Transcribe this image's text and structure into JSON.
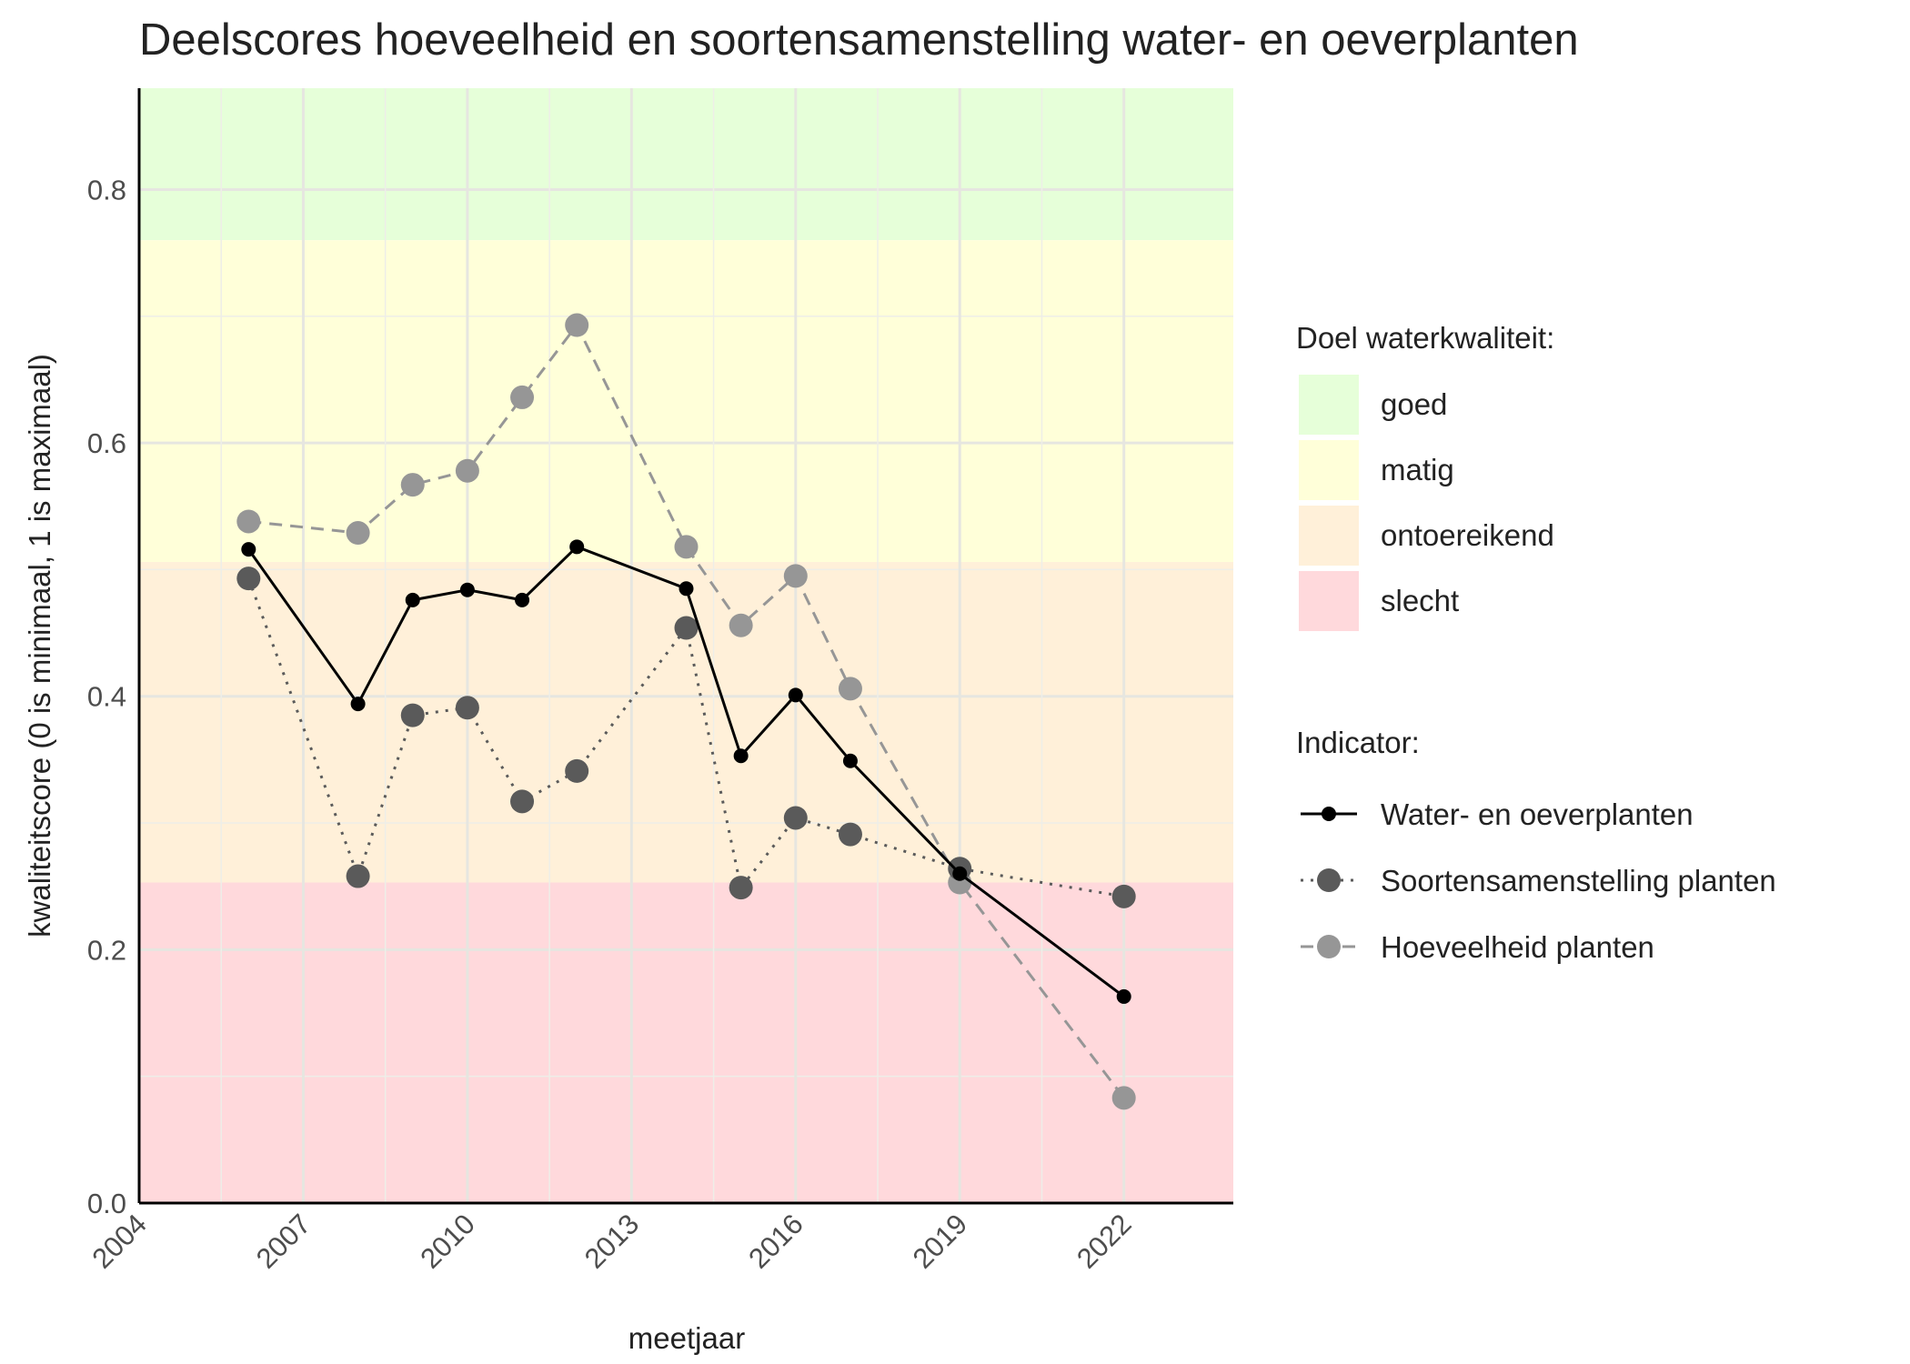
{
  "chart_data": {
    "type": "line",
    "title": "Deelscores hoeveelheid en soortensamenstelling water- en oeverplanten",
    "x_label": "meetjaar",
    "y_label": "kwaliteitscore (0 is minimaal, 1 is maximaal)",
    "x": [
      2006,
      2008,
      2009,
      2010,
      2011,
      2012,
      2014,
      2015,
      2016,
      2017,
      2019,
      2022
    ],
    "series": [
      {
        "name": "Water- en oeverplanten",
        "color": "#000000",
        "linetype": "solid",
        "values": [
          0.516,
          0.394,
          0.476,
          0.484,
          0.476,
          0.518,
          0.485,
          0.353,
          0.401,
          0.349,
          0.26,
          0.163
        ]
      },
      {
        "name": "Soortensamenstelling planten",
        "color": "#5a5a5a",
        "linetype": "dotted",
        "values": [
          0.493,
          0.258,
          0.385,
          0.391,
          0.317,
          0.341,
          0.454,
          0.249,
          0.304,
          0.291,
          0.264,
          0.242
        ]
      },
      {
        "name": "Hoeveelheid planten",
        "color": "#969696",
        "linetype": "dashed",
        "values": [
          0.538,
          0.529,
          0.567,
          0.578,
          0.636,
          0.693,
          0.518,
          0.456,
          0.495,
          0.406,
          0.253,
          0.083
        ]
      }
    ],
    "bands_title": "Doel waterkwaliteit:",
    "bands": [
      {
        "name": "goed",
        "from": 0.76,
        "to": 0.88,
        "color": "#e6ffd9"
      },
      {
        "name": "matig",
        "from": 0.506,
        "to": 0.76,
        "color": "#ffffd9"
      },
      {
        "name": "ontoereikend",
        "from": 0.253,
        "to": 0.506,
        "color": "#fff0d9"
      },
      {
        "name": "slecht",
        "from": 0,
        "to": 0.253,
        "color": "#ffd9dc"
      }
    ],
    "legend_title": "Indicator:",
    "xlim": [
      2004,
      2024
    ],
    "xticks": [
      2004,
      2007,
      2010,
      2013,
      2016,
      2019,
      2022
    ],
    "ylim": [
      0,
      0.88
    ],
    "yticks": [
      {
        "value": 0,
        "label": "0.0"
      },
      0.2,
      0.4,
      0.6,
      0.8
    ],
    "grid": true,
    "legend_position": "right"
  }
}
